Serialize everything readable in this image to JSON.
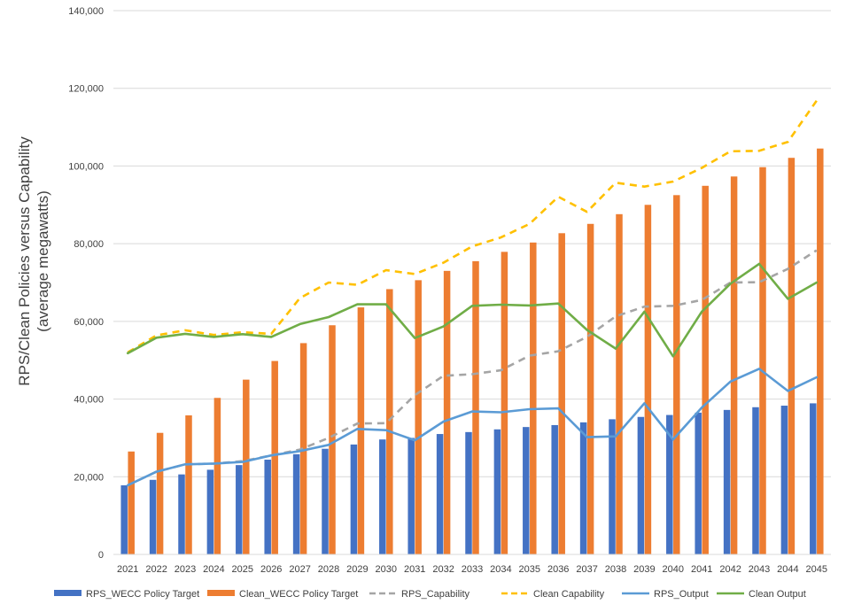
{
  "chart_data": {
    "type": "bar",
    "title": "",
    "ylabel": [
      "RPS/Clean Policies versus Capability",
      "(average megawatts)"
    ],
    "xlabel": "",
    "ylim": [
      0,
      140000
    ],
    "yticks": [
      0,
      20000,
      40000,
      60000,
      80000,
      100000,
      120000,
      140000
    ],
    "ytick_labels": [
      "0",
      "20,000",
      "40,000",
      "60,000",
      "80,000",
      "100,000",
      "120,000",
      "140,000"
    ],
    "grid": true,
    "legend_position": "bottom",
    "categories": [
      "2021",
      "2022",
      "2023",
      "2024",
      "2025",
      "2026",
      "2027",
      "2028",
      "2029",
      "2030",
      "2031",
      "2032",
      "2033",
      "2034",
      "2035",
      "2036",
      "2037",
      "2038",
      "2039",
      "2040",
      "2041",
      "2042",
      "2043",
      "2044",
      "2045"
    ],
    "series": [
      {
        "name": "RPS_WECC Policy Target",
        "kind": "bar",
        "color": "#4472C4",
        "values": [
          17800,
          19200,
          20600,
          21800,
          23000,
          24400,
          25800,
          27200,
          28300,
          29600,
          30000,
          31000,
          31500,
          32200,
          32800,
          33300,
          34000,
          34800,
          35400,
          35900,
          36500,
          37200,
          37900,
          38300,
          38900
        ]
      },
      {
        "name": "Clean_WECC Policy Target",
        "kind": "bar",
        "color": "#ED7D31",
        "values": [
          26500,
          31300,
          35800,
          40300,
          45000,
          49800,
          54400,
          59000,
          63600,
          68300,
          70600,
          73000,
          75500,
          77900,
          80300,
          82700,
          85100,
          87600,
          90000,
          92500,
          94900,
          97300,
          99700,
          102100,
          104500
        ]
      },
      {
        "name": "RPS_Capability",
        "kind": "line",
        "dash": true,
        "color": "#A5A5A5",
        "values": [
          17800,
          21300,
          23200,
          23400,
          24000,
          25500,
          27000,
          30000,
          33700,
          33800,
          41000,
          46000,
          46400,
          47400,
          51200,
          52300,
          56000,
          61300,
          63800,
          64000,
          65500,
          70000,
          70100,
          73500,
          78300
        ]
      },
      {
        "name": "Clean Capability",
        "kind": "line",
        "dash": true,
        "color": "#FFC000",
        "values": [
          52000,
          56400,
          57700,
          56500,
          57200,
          56800,
          66000,
          70000,
          69400,
          73200,
          72200,
          75100,
          79300,
          81600,
          85100,
          92100,
          88200,
          95700,
          94700,
          96000,
          99500,
          103800,
          103900,
          106200,
          116800
        ]
      },
      {
        "name": "RPS_Output",
        "kind": "line",
        "dash": false,
        "color": "#5B9BD5",
        "values": [
          17800,
          21300,
          23200,
          23400,
          23800,
          25500,
          26600,
          28200,
          32300,
          32000,
          29400,
          34200,
          36800,
          36600,
          37400,
          37600,
          30200,
          30400,
          38900,
          29600,
          37800,
          44500,
          47800,
          42100,
          45600
        ]
      },
      {
        "name": "Clean Output",
        "kind": "line",
        "dash": false,
        "color": "#70AD47",
        "values": [
          51800,
          55800,
          56800,
          56000,
          56700,
          56000,
          59300,
          61100,
          64400,
          64400,
          55700,
          58700,
          64000,
          64300,
          64100,
          64600,
          57800,
          53000,
          62500,
          51000,
          62500,
          69700,
          74800,
          65800,
          70000
        ]
      }
    ]
  }
}
